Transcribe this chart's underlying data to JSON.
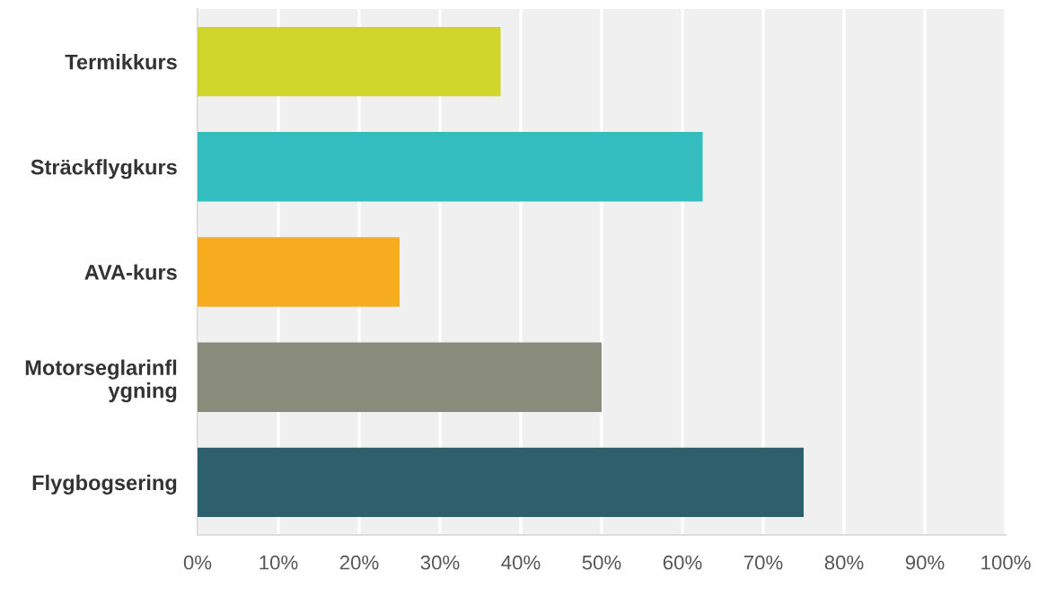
{
  "chart_data": {
    "type": "bar",
    "orientation": "horizontal",
    "categories": [
      "Termikkurs",
      "Sträckflygkurs",
      "AVA-kurs",
      "Motorseglarinfl\nygning",
      "Flygbogsering"
    ],
    "values": [
      37.5,
      62.5,
      25,
      50,
      75
    ],
    "colors": [
      "#cfd52a",
      "#33bdbe",
      "#f6ac1e",
      "#898b7b",
      "#2e5f6d"
    ],
    "xlim": [
      0,
      100
    ],
    "xticks": [
      {
        "value": 0,
        "label": "0%"
      },
      {
        "value": 10,
        "label": "10%"
      },
      {
        "value": 20,
        "label": "20%"
      },
      {
        "value": 30,
        "label": "30%"
      },
      {
        "value": 40,
        "label": "40%"
      },
      {
        "value": 50,
        "label": "50%"
      },
      {
        "value": 60,
        "label": "60%"
      },
      {
        "value": 70,
        "label": "70%"
      },
      {
        "value": 80,
        "label": "80%"
      },
      {
        "value": 90,
        "label": "90%"
      },
      {
        "value": 100,
        "label": "100%"
      }
    ],
    "grid": "x"
  }
}
